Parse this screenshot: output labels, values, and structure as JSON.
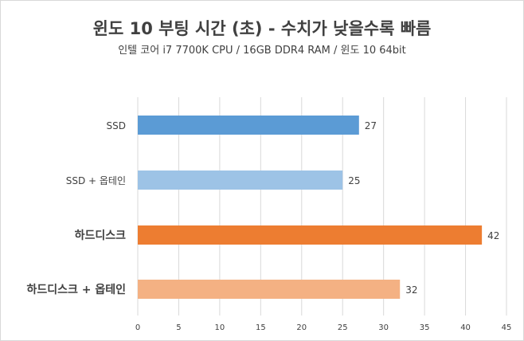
{
  "chart_data": {
    "type": "bar",
    "orientation": "horizontal",
    "title": "윈도 10 부팅 시간 (초) - 수치가 낮을수록 빠름",
    "subtitle": "인텔 코어 i7 7700K CPU / 16GB DDR4 RAM / 윈도 10 64bit",
    "categories": [
      "SSD",
      "SSD + 옵테인",
      "하드디스크",
      "하드디스크 + 옵테인"
    ],
    "values": [
      27,
      25,
      42,
      32
    ],
    "colors": [
      "#5b9bd5",
      "#9dc3e6",
      "#ed7d31",
      "#f4b183"
    ],
    "xlim": [
      0,
      45
    ],
    "xticks": [
      0,
      5,
      10,
      15,
      20,
      25,
      30,
      35,
      40,
      45
    ],
    "grid": true,
    "data_labels": true,
    "legend": "none"
  }
}
